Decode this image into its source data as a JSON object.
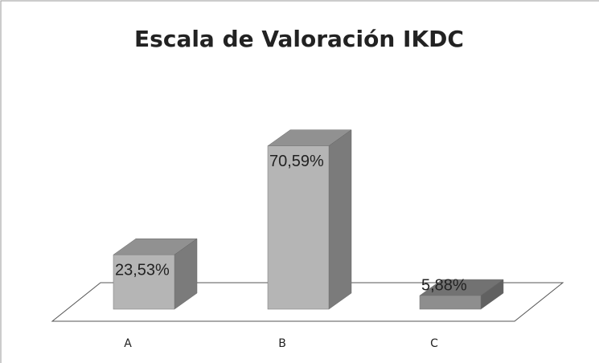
{
  "chart_data": {
    "type": "bar3d",
    "title": "Escala de Valoración IKDC",
    "categories": [
      "A",
      "B",
      "C"
    ],
    "values": [
      23.53,
      70.59,
      5.88
    ],
    "value_labels": [
      "23,53%",
      "70,59%",
      "5,88%"
    ],
    "colors": [
      "#b5b5b5",
      "#b5b5b5",
      "#8e8e8e"
    ]
  }
}
